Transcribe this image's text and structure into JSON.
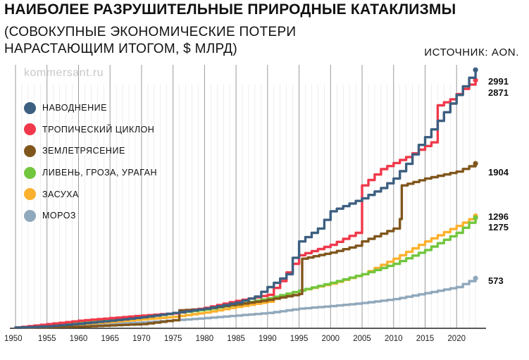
{
  "header": {
    "title": "НАИБОЛЕЕ РАЗРУШИТЕЛЬНЫЕ ПРИРОДНЫЕ КАТАКЛИЗМЫ",
    "subtitle_line1": "(СОВОКУПНЫЕ ЭКОНОМИЧЕСКИЕ ПОТЕРИ",
    "subtitle_line2": "НАРАСТАЮЩИМ ИТОГОМ, $ МЛРД)",
    "source": "ИСТОЧНИК: AON.",
    "watermark": "kommersant.ru"
  },
  "chart_data": {
    "type": "line",
    "title": "НАИБОЛЕЕ РАЗРУШИТЕЛЬНЫЕ ПРИРОДНЫЕ КАТАКЛИЗМЫ",
    "subtitle": "(СОВОКУПНЫЕ ЭКОНОМИЧЕСКИЕ ПОТЕРИ НАРАСТАЮЩИМ ИТОГОМ, $ МЛРД)",
    "xlabel": "",
    "ylabel": "",
    "xlim": [
      1950,
      2024
    ],
    "ylim": [
      0,
      3050
    ],
    "x_ticks": [
      1950,
      1955,
      1960,
      1965,
      1970,
      1975,
      1980,
      1985,
      1990,
      1995,
      2000,
      2005,
      2010,
      2015,
      2020
    ],
    "grid": "vertical",
    "legend_position": "left",
    "series": [
      {
        "name": "НАВОДНЕНИЕ",
        "color": "#3d5f80",
        "end_label": "2991",
        "points": [
          [
            1950,
            0
          ],
          [
            1955,
            15
          ],
          [
            1960,
            45
          ],
          [
            1965,
            80
          ],
          [
            1970,
            120
          ],
          [
            1975,
            170
          ],
          [
            1980,
            220
          ],
          [
            1985,
            290
          ],
          [
            1988,
            360
          ],
          [
            1990,
            470
          ],
          [
            1993,
            620
          ],
          [
            1995,
            1000
          ],
          [
            1998,
            1150
          ],
          [
            2000,
            1350
          ],
          [
            2005,
            1500
          ],
          [
            2008,
            1620
          ],
          [
            2010,
            1730
          ],
          [
            2012,
            1900
          ],
          [
            2014,
            2120
          ],
          [
            2016,
            2300
          ],
          [
            2018,
            2500
          ],
          [
            2020,
            2700
          ],
          [
            2022,
            2900
          ],
          [
            2023,
            2991
          ]
        ]
      },
      {
        "name": "ТРОПИЧЕСКИЙ ЦИКЛОН",
        "color": "#f0384a",
        "end_label": "2871",
        "points": [
          [
            1950,
            0
          ],
          [
            1955,
            40
          ],
          [
            1960,
            80
          ],
          [
            1965,
            110
          ],
          [
            1970,
            140
          ],
          [
            1975,
            165
          ],
          [
            1980,
            230
          ],
          [
            1985,
            310
          ],
          [
            1990,
            380
          ],
          [
            1992,
            540
          ],
          [
            1995,
            840
          ],
          [
            2000,
            960
          ],
          [
            2004,
            1100
          ],
          [
            2005,
            1650
          ],
          [
            2008,
            1840
          ],
          [
            2012,
            1980
          ],
          [
            2016,
            2150
          ],
          [
            2017,
            2580
          ],
          [
            2019,
            2650
          ],
          [
            2021,
            2770
          ],
          [
            2023,
            2871
          ]
        ]
      },
      {
        "name": "ЗЕМЛЕТРЯСЕНИЕ",
        "color": "#80561c",
        "end_label": "1904",
        "points": [
          [
            1950,
            0
          ],
          [
            1960,
            10
          ],
          [
            1970,
            40
          ],
          [
            1975,
            85
          ],
          [
            1976,
            200
          ],
          [
            1980,
            220
          ],
          [
            1985,
            270
          ],
          [
            1989,
            310
          ],
          [
            1995,
            390
          ],
          [
            1995.5,
            800
          ],
          [
            2000,
            870
          ],
          [
            2004,
            950
          ],
          [
            2005,
            1000
          ],
          [
            2010,
            1150
          ],
          [
            2011,
            1260
          ],
          [
            2011.3,
            1650
          ],
          [
            2015,
            1730
          ],
          [
            2020,
            1810
          ],
          [
            2023,
            1904
          ]
        ]
      },
      {
        "name": "ЛИВЕНЬ, ГРОЗА, УРАГАН",
        "color": "#72c63e",
        "end_label": "1275",
        "points": [
          [
            1950,
            0
          ],
          [
            1955,
            20
          ],
          [
            1960,
            55
          ],
          [
            1965,
            90
          ],
          [
            1970,
            120
          ],
          [
            1975,
            165
          ],
          [
            1980,
            210
          ],
          [
            1985,
            270
          ],
          [
            1990,
            340
          ],
          [
            1995,
            430
          ],
          [
            2000,
            520
          ],
          [
            2005,
            620
          ],
          [
            2010,
            740
          ],
          [
            2015,
            900
          ],
          [
            2020,
            1100
          ],
          [
            2023,
            1275
          ]
        ]
      },
      {
        "name": "ЗАСУХА",
        "color": "#fbb12e",
        "end_label": "1296",
        "points": [
          [
            1950,
            0
          ],
          [
            1955,
            15
          ],
          [
            1960,
            40
          ],
          [
            1965,
            65
          ],
          [
            1970,
            95
          ],
          [
            1975,
            125
          ],
          [
            1980,
            175
          ],
          [
            1985,
            240
          ],
          [
            1990,
            300
          ],
          [
            1992,
            370
          ],
          [
            1995,
            430
          ],
          [
            2000,
            510
          ],
          [
            2005,
            620
          ],
          [
            2010,
            800
          ],
          [
            2015,
            1000
          ],
          [
            2020,
            1180
          ],
          [
            2023,
            1296
          ]
        ]
      },
      {
        "name": "МОРОЗ",
        "color": "#90a8bb",
        "end_label": "573",
        "points": [
          [
            1950,
            0
          ],
          [
            1960,
            25
          ],
          [
            1970,
            60
          ],
          [
            1975,
            85
          ],
          [
            1980,
            110
          ],
          [
            1985,
            140
          ],
          [
            1990,
            170
          ],
          [
            1995,
            220
          ],
          [
            2000,
            250
          ],
          [
            2005,
            285
          ],
          [
            2010,
            330
          ],
          [
            2015,
            400
          ],
          [
            2020,
            470
          ],
          [
            2022,
            540
          ],
          [
            2023,
            573
          ]
        ]
      }
    ]
  }
}
